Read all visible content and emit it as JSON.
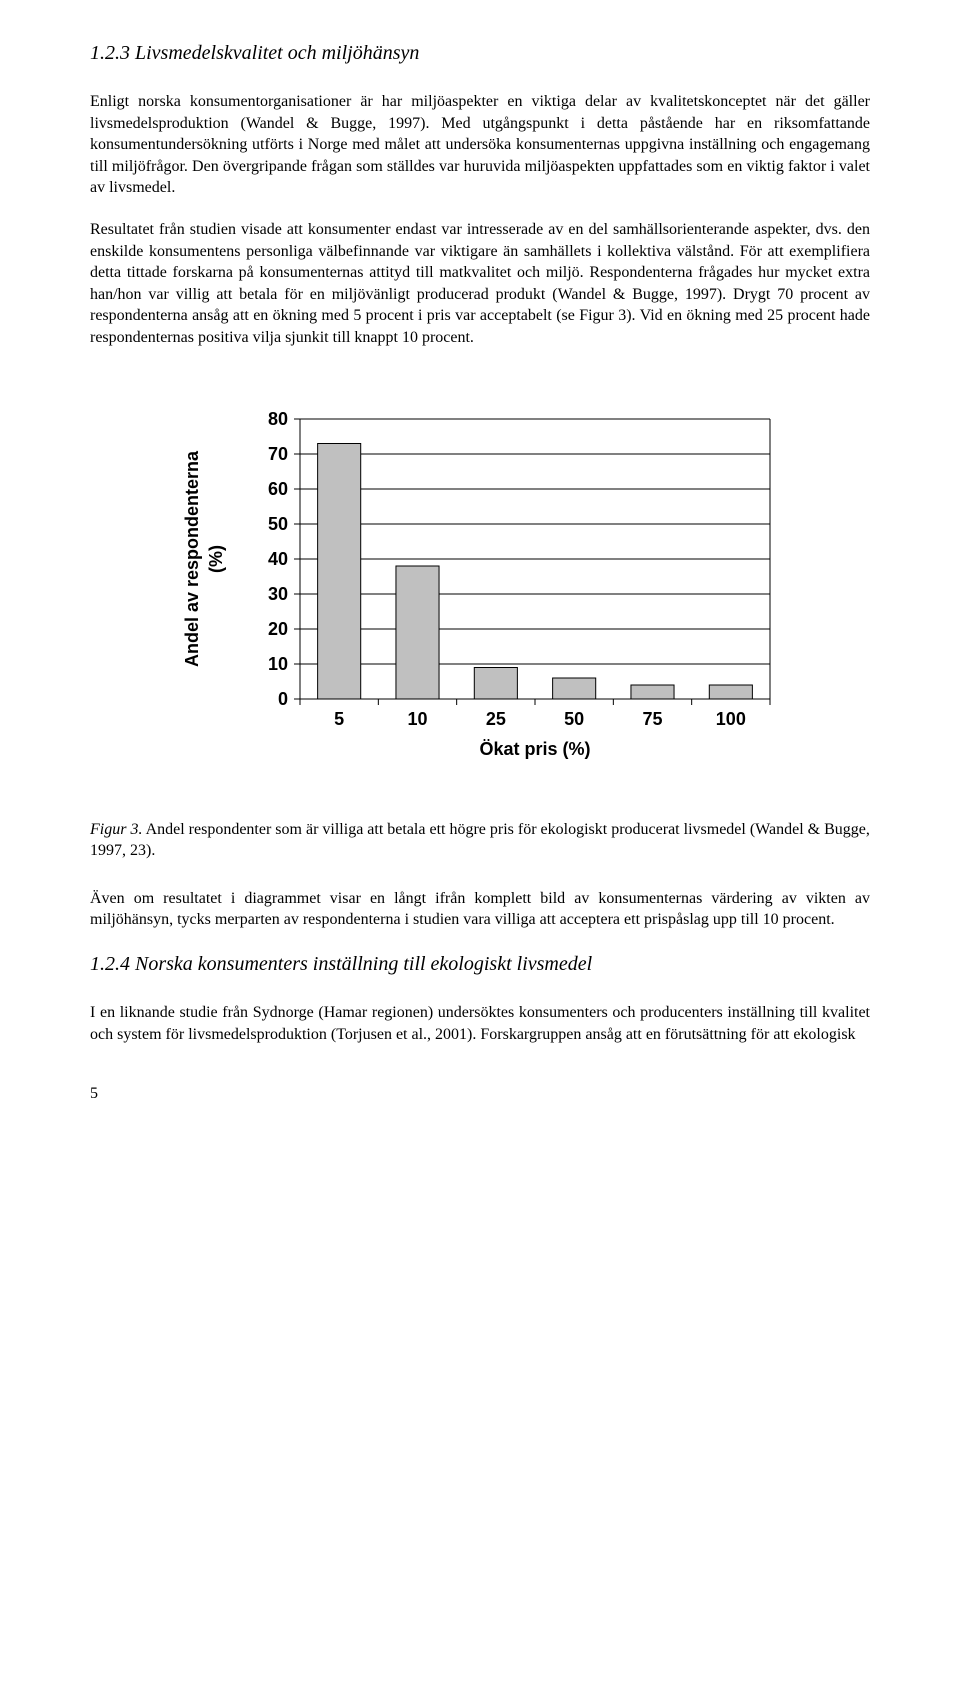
{
  "heading1": "1.2.3 Livsmedelskvalitet och miljöhänsyn",
  "para1": "Enligt norska konsumentorganisationer är har miljöaspekter en viktiga delar av kvalitetskonceptet när det gäller livsmedelsproduktion (Wandel & Bugge, 1997). Med utgångspunkt i detta påstående har en riksomfattande konsumentundersökning utförts i Norge med målet att undersöka konsumenternas uppgivna inställning och engagemang till miljöfrågor. Den övergripande frågan som ställdes var huruvida miljöaspekten uppfattades som en viktig faktor i valet av livsmedel.",
  "para2": "Resultatet från studien visade att konsumenter endast var intresserade av en del samhällsorienterande aspekter, dvs. den enskilde konsumentens personliga välbefinnande var viktigare än samhällets i kollektiva välstånd. För att exemplifiera detta tittade forskarna på konsumenternas attityd till matkvalitet och miljö. Respondenterna frågades hur mycket extra han/hon var villig att betala för en miljövänligt producerad produkt (Wandel & Bugge, 1997). Drygt 70 procent av respondenterna ansåg att en ökning med 5 procent i pris var acceptabelt (se Figur 3). Vid en ökning med 25 procent hade respondenternas positiva vilja sjunkit till knappt 10 procent.",
  "chart": {
    "type": "bar",
    "ylabel_line1": "Andel av respondenterna",
    "ylabel_line2": "(%)",
    "xlabel": "Ökat pris (%)",
    "categories": [
      "5",
      "10",
      "25",
      "50",
      "75",
      "100"
    ],
    "values": [
      73,
      38,
      9,
      6,
      4,
      4
    ],
    "yticks": [
      "0",
      "10",
      "20",
      "30",
      "40",
      "50",
      "60",
      "70",
      "80"
    ],
    "ylim_max": 80,
    "bar_fill": "#c0c0c0",
    "bar_stroke": "#000000",
    "grid_color": "#000000",
    "background": "#ffffff",
    "tick_fontsize": 18,
    "label_fontsize": 18
  },
  "figure_label": "Figur 3.",
  "figure_text": " Andel respondenter som är villiga att betala ett högre pris för ekologiskt producerat livsmedel (Wandel & Bugge, 1997, 23).",
  "para3": "Även om resultatet i diagrammet visar en långt ifrån komplett bild av konsumenternas värdering av vikten av miljöhänsyn, tycks merparten av respondenterna i studien vara villiga att acceptera ett prispåslag upp till 10 procent.",
  "heading2": "1.2.4 Norska konsumenters inställning till ekologiskt livsmedel",
  "para4": "I en liknande studie från Sydnorge (Hamar regionen) undersöktes konsumenters och producenters inställning till kvalitet och system för livsmedelsproduktion (Torjusen et al., 2001). Forskargruppen ansåg att en förutsättning för att ekologisk",
  "page_number": "5"
}
